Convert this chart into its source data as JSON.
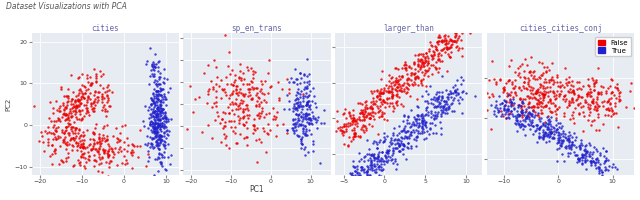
{
  "title": "Dataset Visualizations with PCA",
  "subplots": [
    {
      "title": "cities",
      "xlim": [
        -22,
        13
      ],
      "ylim": [
        -12,
        22
      ],
      "xticks": [
        -20,
        -10,
        0,
        10
      ],
      "yticks": [
        -10,
        0,
        10,
        20
      ]
    },
    {
      "title": "sp_en_trans",
      "xlim": [
        -22,
        15
      ],
      "ylim": [
        -16,
        16
      ],
      "xticks": [
        -20,
        -10,
        0,
        10
      ],
      "yticks": [
        -15,
        -10,
        -5,
        0,
        5,
        10,
        15
      ]
    },
    {
      "title": "larger_than",
      "xlim": [
        -6,
        12
      ],
      "ylim": [
        -8,
        12
      ],
      "xticks": [
        -5,
        0,
        5,
        10
      ],
      "yticks": [
        -5,
        0,
        5,
        10
      ]
    },
    {
      "title": "cities_cities_conj",
      "xlim": [
        -13,
        14
      ],
      "ylim": [
        -14,
        21
      ],
      "xticks": [
        -10,
        0,
        10
      ],
      "yticks": [
        -10,
        0,
        10
      ]
    }
  ],
  "false_color": "#EE0000",
  "true_color": "#2222CC",
  "bg_color": "#E6ECF2",
  "ylabel": "PC2",
  "xlabel": "PC1",
  "point_size": 3,
  "alpha": 0.85,
  "seed": 42
}
